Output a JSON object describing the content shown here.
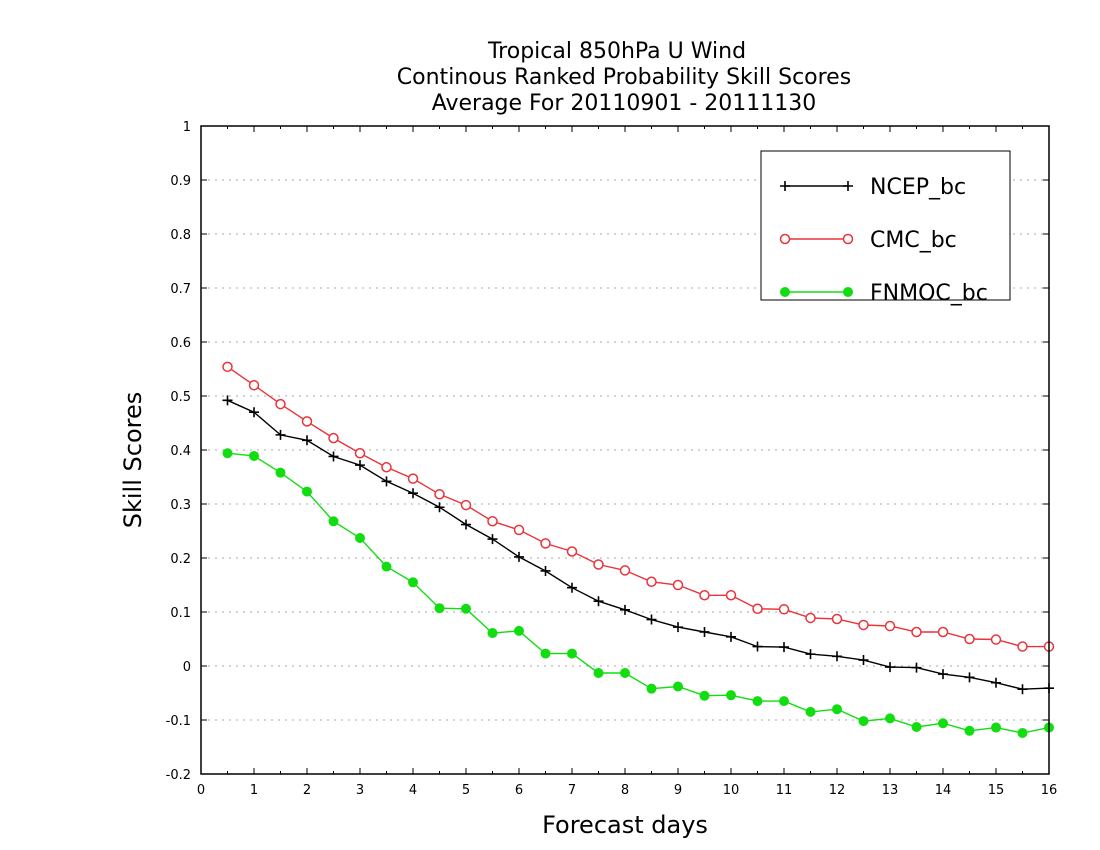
{
  "chart_data": {
    "type": "line",
    "title": [
      "Tropical 850hPa U Wind",
      "Continous Ranked Probability Skill Scores",
      "Average For 20110901 - 20111130"
    ],
    "xlabel": "Forecast days",
    "ylabel": "Skill Scores",
    "xlim": [
      0,
      16
    ],
    "ylim": [
      -0.2,
      1
    ],
    "x_ticks": [
      "0",
      "1",
      "2",
      "3",
      "4",
      "5",
      "6",
      "7",
      "8",
      "9",
      "10",
      "11",
      "12",
      "13",
      "14",
      "15",
      "16"
    ],
    "y_ticks": [
      "-0.2",
      "-0.1",
      "0",
      "0.1",
      "0.2",
      "0.3",
      "0.4",
      "0.5",
      "0.6",
      "0.7",
      "0.8",
      "0.9",
      "1"
    ],
    "grid": "horizontal dotted",
    "legend_position": "top-right",
    "x": [
      0.5,
      1,
      1.5,
      2,
      2.5,
      3,
      3.5,
      4,
      4.5,
      5,
      5.5,
      6,
      6.5,
      7,
      7.5,
      8,
      8.5,
      9,
      9.5,
      10,
      10.5,
      11,
      11.5,
      12,
      12.5,
      13,
      13.5,
      14,
      14.5,
      15,
      15.5,
      16
    ],
    "series": [
      {
        "name": "NCEP_bc",
        "color": "#000000",
        "marker": "plus",
        "values": [
          0.492,
          0.47,
          0.428,
          0.418,
          0.388,
          0.372,
          0.342,
          0.32,
          0.294,
          0.262,
          0.235,
          0.202,
          0.176,
          0.145,
          0.12,
          0.104,
          0.086,
          0.072,
          0.063,
          0.054,
          0.036,
          0.035,
          0.022,
          0.018,
          0.011,
          -0.002,
          -0.003,
          -0.015,
          -0.021,
          -0.031,
          -0.043,
          -0.041
        ]
      },
      {
        "name": "CMC_bc",
        "color": "#e8343a",
        "marker": "open-circle",
        "values": [
          0.554,
          0.52,
          0.485,
          0.453,
          0.422,
          0.394,
          0.368,
          0.347,
          0.318,
          0.298,
          0.268,
          0.252,
          0.227,
          0.212,
          0.188,
          0.177,
          0.156,
          0.15,
          0.131,
          0.131,
          0.106,
          0.105,
          0.089,
          0.087,
          0.076,
          0.074,
          0.063,
          0.063,
          0.05,
          0.049,
          0.036,
          0.036
        ]
      },
      {
        "name": "FNMOC_bc",
        "color": "#11dd11",
        "marker": "filled-circle",
        "values": [
          0.394,
          0.389,
          0.358,
          0.323,
          0.268,
          0.237,
          0.184,
          0.155,
          0.107,
          0.106,
          0.061,
          0.065,
          0.023,
          0.023,
          -0.013,
          -0.013,
          -0.042,
          -0.038,
          -0.055,
          -0.054,
          -0.065,
          -0.065,
          -0.085,
          -0.08,
          -0.102,
          -0.097,
          -0.113,
          -0.106,
          -0.12,
          -0.114,
          -0.124,
          -0.114
        ]
      }
    ]
  }
}
